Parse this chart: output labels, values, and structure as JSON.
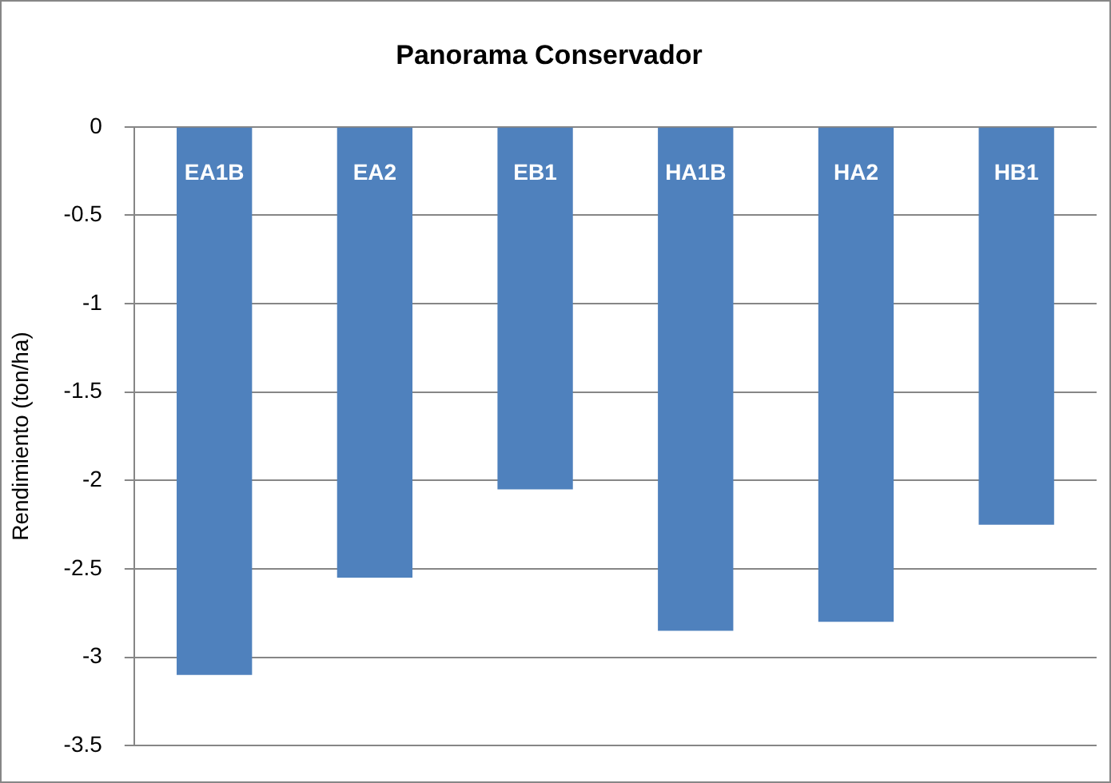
{
  "chart_data": {
    "type": "bar",
    "title": "Panorama Conservador",
    "ylabel": "Rendimiento (ton/ha)",
    "categories": [
      "EA1B",
      "EA2",
      "EB1",
      "HA1B",
      "HA2",
      "HB1"
    ],
    "values": [
      -3.1,
      -2.55,
      -2.05,
      -2.85,
      -2.8,
      -2.25
    ],
    "color": "#4f81bd",
    "ylim": [
      -3.5,
      0
    ],
    "yticks": [
      -3.5,
      -3,
      -2.5,
      -2,
      -1.5,
      -1,
      -0.5,
      0
    ],
    "grid": "y",
    "legend": false
  }
}
